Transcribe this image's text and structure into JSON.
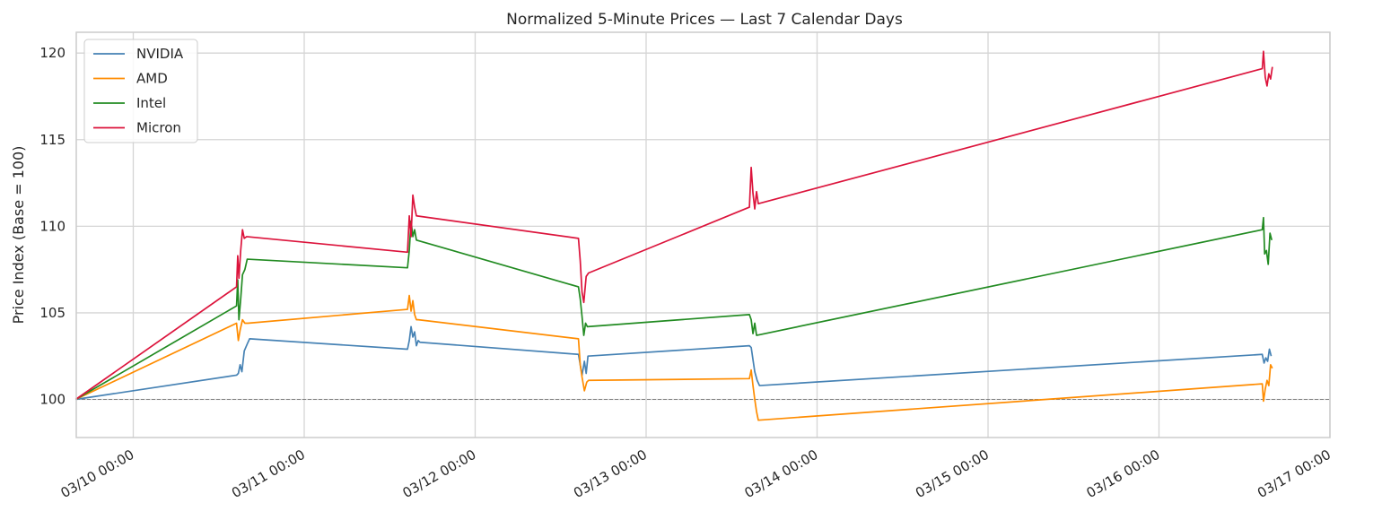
{
  "chart_data": {
    "type": "line",
    "title": "Normalized 5-Minute Prices — Last 7 Calendar Days",
    "xlabel": "",
    "ylabel": "Price Index (Base = 100)",
    "xlim": [
      "03/09 16:00",
      "03/17 00:00"
    ],
    "ylim": [
      97.8,
      121.2
    ],
    "x_ticks": [
      "03/10 00:00",
      "03/11 00:00",
      "03/12 00:00",
      "03/13 00:00",
      "03/14 00:00",
      "03/15 00:00",
      "03/16 00:00",
      "03/17 00:00"
    ],
    "y_ticks": [
      100,
      105,
      110,
      115,
      120
    ],
    "grid": true,
    "legend_position": "top-left",
    "reference_line": {
      "y": 100,
      "style": "dashed",
      "color": "#808080"
    },
    "series": [
      {
        "name": "NVIDIA",
        "color": "#4682b4",
        "points": [
          [
            "03/09 15:55",
            100.0
          ],
          [
            "03/10 14:30",
            101.4
          ],
          [
            "03/10 14:45",
            101.5
          ],
          [
            "03/10 15:00",
            102.0
          ],
          [
            "03/10 15:15",
            101.6
          ],
          [
            "03/10 15:35",
            102.8
          ],
          [
            "03/10 16:00",
            103.2
          ],
          [
            "03/10 16:20",
            103.5
          ],
          [
            "03/11 14:30",
            102.9
          ],
          [
            "03/11 14:45",
            103.4
          ],
          [
            "03/11 15:00",
            104.2
          ],
          [
            "03/11 15:15",
            103.6
          ],
          [
            "03/11 15:30",
            103.9
          ],
          [
            "03/11 15:45",
            103.1
          ],
          [
            "03/11 16:00",
            103.4
          ],
          [
            "03/11 16:15",
            103.3
          ],
          [
            "03/12 14:30",
            102.6
          ],
          [
            "03/12 14:45",
            102.0
          ],
          [
            "03/12 15:00",
            101.4
          ],
          [
            "03/12 15:20",
            102.2
          ],
          [
            "03/12 15:35",
            101.5
          ],
          [
            "03/12 15:50",
            102.5
          ],
          [
            "03/13 14:30",
            103.1
          ],
          [
            "03/13 14:45",
            103.0
          ],
          [
            "03/13 15:00",
            102.3
          ],
          [
            "03/13 15:15",
            101.6
          ],
          [
            "03/13 15:35",
            101.1
          ],
          [
            "03/13 15:55",
            100.8
          ],
          [
            "03/16 14:30",
            102.6
          ],
          [
            "03/16 14:45",
            102.1
          ],
          [
            "03/16 15:00",
            102.4
          ],
          [
            "03/16 15:15",
            102.2
          ],
          [
            "03/16 15:30",
            102.9
          ],
          [
            "03/16 15:45",
            102.5
          ]
        ]
      },
      {
        "name": "AMD",
        "color": "#ff8c00",
        "points": [
          [
            "03/09 15:55",
            100.0
          ],
          [
            "03/10 14:30",
            104.4
          ],
          [
            "03/10 14:45",
            103.4
          ],
          [
            "03/10 15:00",
            104.0
          ],
          [
            "03/10 15:20",
            104.6
          ],
          [
            "03/10 15:40",
            104.4
          ],
          [
            "03/10 16:05",
            104.4
          ],
          [
            "03/11 14:30",
            105.2
          ],
          [
            "03/11 14:45",
            106.0
          ],
          [
            "03/11 15:00",
            105.1
          ],
          [
            "03/11 15:15",
            105.7
          ],
          [
            "03/11 15:30",
            104.9
          ],
          [
            "03/11 15:45",
            104.6
          ],
          [
            "03/11 16:00",
            104.6
          ],
          [
            "03/12 14:30",
            103.5
          ],
          [
            "03/12 14:45",
            102.0
          ],
          [
            "03/12 15:00",
            101.3
          ],
          [
            "03/12 15:20",
            100.5
          ],
          [
            "03/12 15:40",
            101.0
          ],
          [
            "03/12 15:55",
            101.1
          ],
          [
            "03/13 14:30",
            101.2
          ],
          [
            "03/13 14:45",
            101.7
          ],
          [
            "03/13 15:00",
            100.8
          ],
          [
            "03/13 15:15",
            100.0
          ],
          [
            "03/13 15:30",
            99.3
          ],
          [
            "03/13 15:45",
            98.8
          ],
          [
            "03/16 14:30",
            100.9
          ],
          [
            "03/16 14:40",
            99.9
          ],
          [
            "03/16 14:55",
            100.6
          ],
          [
            "03/16 15:10",
            101.1
          ],
          [
            "03/16 15:25",
            100.8
          ],
          [
            "03/16 15:40",
            102.0
          ],
          [
            "03/16 15:55",
            101.8
          ]
        ]
      },
      {
        "name": "Intel",
        "color": "#228b22",
        "points": [
          [
            "03/09 15:55",
            100.0
          ],
          [
            "03/10 14:30",
            105.4
          ],
          [
            "03/10 14:40",
            106.9
          ],
          [
            "03/10 14:50",
            104.6
          ],
          [
            "03/10 15:05",
            105.8
          ],
          [
            "03/10 15:20",
            107.2
          ],
          [
            "03/10 15:40",
            107.5
          ],
          [
            "03/10 16:00",
            108.1
          ],
          [
            "03/11 14:30",
            107.6
          ],
          [
            "03/11 14:45",
            108.6
          ],
          [
            "03/11 15:00",
            110.3
          ],
          [
            "03/11 15:15",
            109.4
          ],
          [
            "03/11 15:30",
            109.8
          ],
          [
            "03/11 15:45",
            109.2
          ],
          [
            "03/12 14:30",
            106.5
          ],
          [
            "03/12 14:45",
            105.8
          ],
          [
            "03/12 15:00",
            104.8
          ],
          [
            "03/12 15:15",
            103.7
          ],
          [
            "03/12 15:30",
            104.4
          ],
          [
            "03/12 15:45",
            104.2
          ],
          [
            "03/13 14:30",
            104.9
          ],
          [
            "03/13 14:45",
            104.6
          ],
          [
            "03/13 15:00",
            103.8
          ],
          [
            "03/13 15:15",
            104.4
          ],
          [
            "03/13 15:30",
            103.7
          ],
          [
            "03/16 14:30",
            109.8
          ],
          [
            "03/16 14:40",
            110.5
          ],
          [
            "03/16 14:50",
            108.4
          ],
          [
            "03/16 15:05",
            108.6
          ],
          [
            "03/16 15:20",
            107.8
          ],
          [
            "03/16 15:35",
            109.6
          ],
          [
            "03/16 15:50",
            109.2
          ]
        ]
      },
      {
        "name": "Micron",
        "color": "#dc143c",
        "points": [
          [
            "03/09 15:55",
            100.0
          ],
          [
            "03/10 14:30",
            106.5
          ],
          [
            "03/10 14:40",
            108.3
          ],
          [
            "03/10 14:50",
            107.0
          ],
          [
            "03/10 15:05",
            108.6
          ],
          [
            "03/10 15:20",
            109.8
          ],
          [
            "03/10 15:35",
            109.3
          ],
          [
            "03/10 15:55",
            109.4
          ],
          [
            "03/11 14:30",
            108.5
          ],
          [
            "03/11 14:45",
            110.6
          ],
          [
            "03/11 15:00",
            109.4
          ],
          [
            "03/11 15:15",
            111.8
          ],
          [
            "03/11 15:30",
            111.1
          ],
          [
            "03/11 15:45",
            110.6
          ],
          [
            "03/12 14:30",
            109.3
          ],
          [
            "03/12 14:45",
            108.0
          ],
          [
            "03/12 15:00",
            106.2
          ],
          [
            "03/12 15:15",
            105.6
          ],
          [
            "03/12 15:35",
            107.1
          ],
          [
            "03/12 15:55",
            107.3
          ],
          [
            "03/13 14:30",
            111.1
          ],
          [
            "03/13 14:45",
            113.4
          ],
          [
            "03/13 15:00",
            111.9
          ],
          [
            "03/13 15:15",
            111.0
          ],
          [
            "03/13 15:30",
            112.0
          ],
          [
            "03/13 15:45",
            111.3
          ],
          [
            "03/16 14:30",
            119.1
          ],
          [
            "03/16 14:40",
            120.1
          ],
          [
            "03/16 14:55",
            118.6
          ],
          [
            "03/16 15:10",
            118.1
          ],
          [
            "03/16 15:25",
            118.8
          ],
          [
            "03/16 15:40",
            118.5
          ],
          [
            "03/16 15:55",
            119.2
          ]
        ]
      }
    ]
  }
}
